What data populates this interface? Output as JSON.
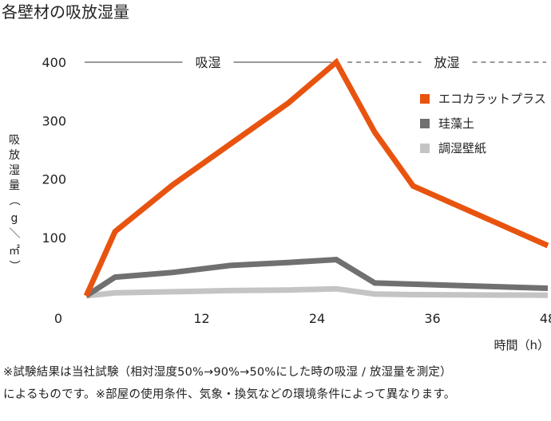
{
  "chart_data": {
    "type": "line",
    "title": "各壁材の吸放湿量",
    "ylabel": "吸放湿量（g／㎡）",
    "xlabel": "時間（h）",
    "x": [
      0,
      3,
      9,
      15,
      21,
      26,
      30,
      34,
      48
    ],
    "xticks": [
      0,
      12,
      24,
      36,
      48
    ],
    "yticks": [
      100,
      200,
      300,
      400
    ],
    "xlim": [
      0,
      48
    ],
    "ylim": [
      0,
      400
    ],
    "grid": false,
    "legend_position": "right",
    "phases": [
      {
        "label": "吸湿",
        "from": 0,
        "to": 26,
        "style": "solid"
      },
      {
        "label": "放湿",
        "from": 26,
        "to": 48,
        "style": "dashed"
      }
    ],
    "series": [
      {
        "name": "エコカラットプラス",
        "color": "#e8540f",
        "values": [
          0,
          110,
          190,
          260,
          330,
          400,
          280,
          188,
          86
        ]
      },
      {
        "name": "珪藻土",
        "color": "#707070",
        "values": [
          0,
          32,
          40,
          52,
          57,
          62,
          22,
          20,
          13
        ]
      },
      {
        "name": "調湿壁紙",
        "color": "#c4c4c4",
        "values": [
          0,
          5,
          7,
          9,
          10,
          12,
          3,
          2,
          1
        ]
      }
    ]
  },
  "footnote": {
    "line1": "※試験結果は当社試験（相対湿度50%→90%→50%にした時の吸湿 / 放湿量を測定）",
    "line2": "によるものです。※部屋の使用条件、気象・換気などの環境条件によって異なります。"
  }
}
